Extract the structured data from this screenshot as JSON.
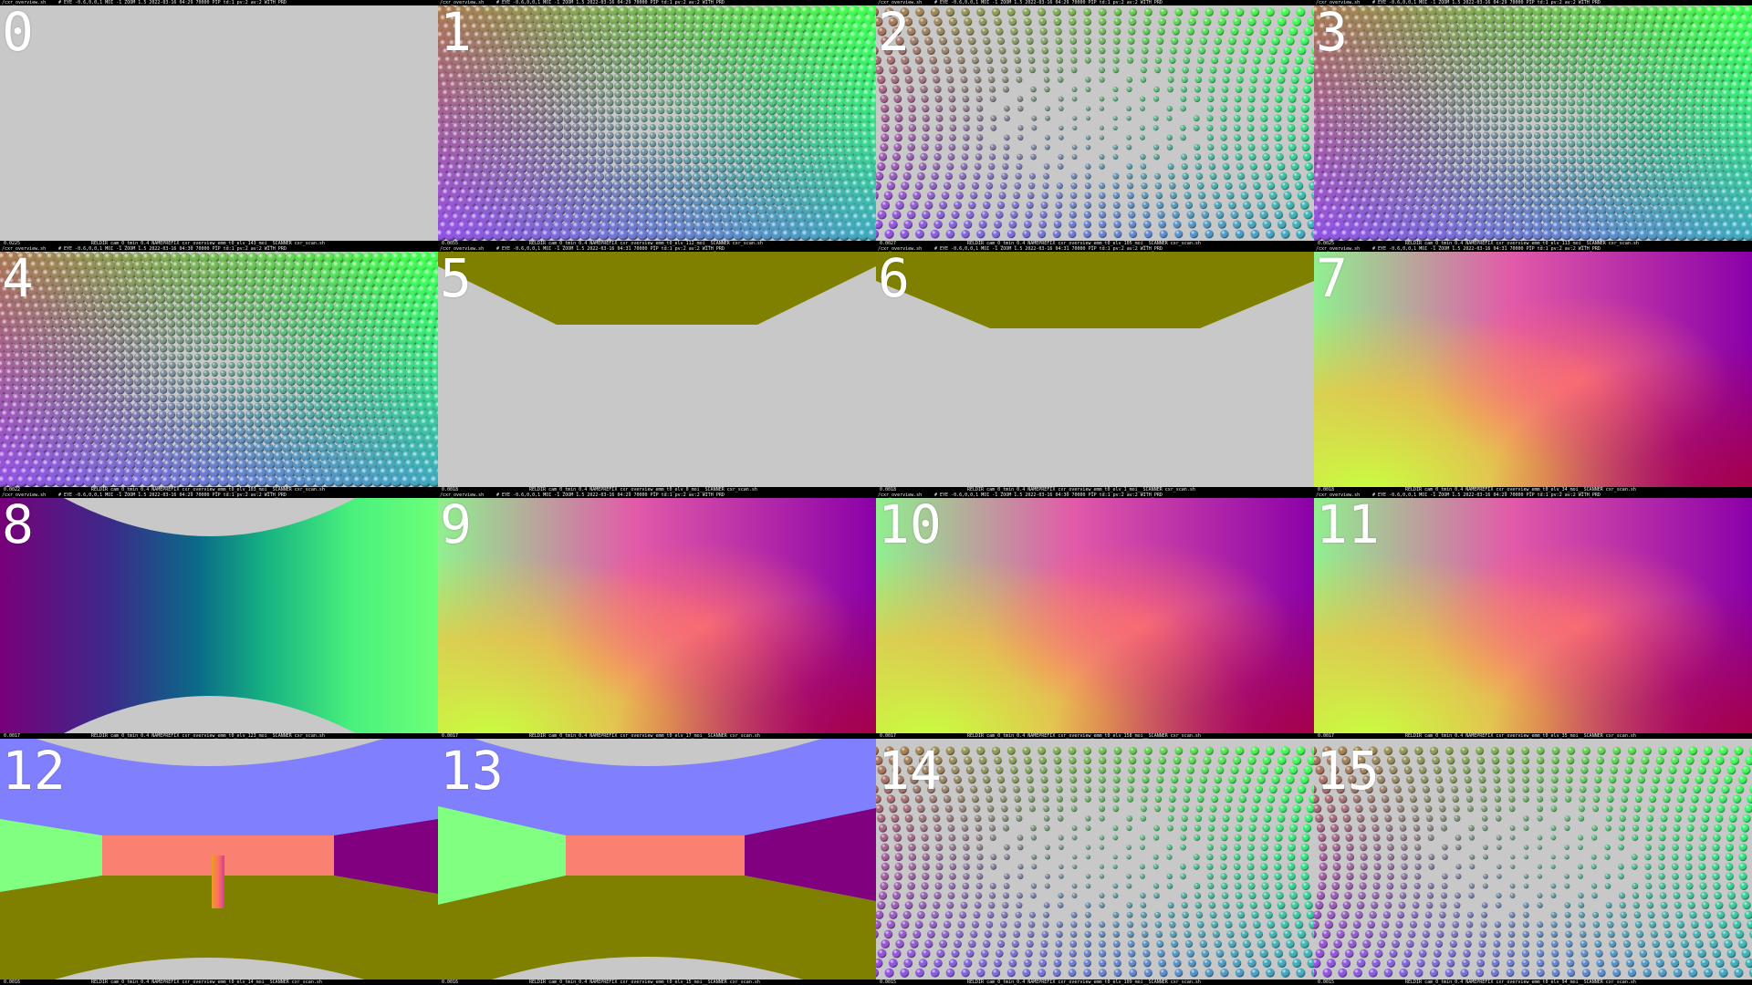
{
  "panels": [
    {
      "index": "0",
      "kind": "empty",
      "status_value": "0.0225",
      "top_left": "/cxr_overview.sh",
      "top_right": "# EYE -0.6,0,0,1 MOI -1 ZOOM 1.5   2022-03-16 04:29  70000 PIP  td:1 pv:2 av:2 WITH_PRD",
      "bottom_info": "RELDIR cam_0_tmin_0.4 NAMEPREFIX cxr_overview_emm_t0_elv_143_moi__SCANNER cxr_scan.sh"
    },
    {
      "index": "1",
      "kind": "spheres-dense",
      "status_value": "0.0055",
      "top_left": "/cxr_overview.sh",
      "top_right": "# EYE -0.6,0,0,1 MOI -1 ZOOM 1.5   2022-03-16 04:29  70000 PIP  td:1 pv:2 av:2 WITH_PRD",
      "bottom_info": "RELDIR cam_0_tmin_0.4 NAMEPREFIX cxr_overview_emm_t0_elv_112_moi__SCANNER cxr_scan.sh"
    },
    {
      "index": "2",
      "kind": "spheres-sparse",
      "status_value": "0.0027",
      "top_left": "/cxr_overview.sh",
      "top_right": "# EYE -0.6,0,0,1 MOI -1 ZOOM 1.5   2022-03-16 04:29  70000 PIP  td:1 pv:2 av:2 WITH_PRD",
      "bottom_info": "RELDIR cam_0_tmin_0.4 NAMEPREFIX cxr_overview_emm_t0_elv_105_moi__SCANNER cxr_scan.sh"
    },
    {
      "index": "3",
      "kind": "spheres-dense",
      "status_value": "0.0025",
      "top_left": "/cxr_overview.sh",
      "top_right": "# EYE -0.6,0,0,1 MOI -1 ZOOM 1.5   2022-03-16 04:29  70000 PIP  td:1 pv:2 av:2 WITH_PRD",
      "bottom_info": "RELDIR cam_0_tmin_0.4 NAMEPREFIX cxr_overview_emm_t0_elv_113_moi__SCANNER cxr_scan.sh"
    },
    {
      "index": "4",
      "kind": "spheres-dense",
      "status_value": "0.0022",
      "top_left": "/cxr_overview.sh",
      "top_right": "# EYE -0.6,0,0,1 MOI -1 ZOOM 1.5   2022-03-16 04:30  70000 PIP  td:1 pv:2 av:2 WITH_PRD",
      "bottom_info": "RELDIR cam_0_tmin_0.4 NAMEPREFIX cxr_overview_emm_t0_elv_103_moi__SCANNER cxr_scan.sh"
    },
    {
      "index": "5",
      "kind": "trapezoid-a",
      "status_value": "0.0018",
      "top_left": "/cxr_overview.sh",
      "top_right": "# EYE -0.6,0,0,1 MOI -1 ZOOM 1.5   2022-03-16 04:31  70000 PIP  td:1 pv:2 av:2 WITH_PRD",
      "bottom_info": "RELDIR cam_0_tmin_0.4 NAMEPREFIX cxr_overview_emm_t0_elv_0_moi__SCANNER cxr_scan.sh"
    },
    {
      "index": "6",
      "kind": "trapezoid-b",
      "status_value": "0.0018",
      "top_left": "/cxr_overview.sh",
      "top_right": "# EYE -0.6,0,0,1 MOI -1 ZOOM 1.5   2022-03-16 04:31  70000 PIP  td:1 pv:2 av:2 WITH_PRD",
      "bottom_info": "RELDIR cam_0_tmin_0.4 NAMEPREFIX cxr_overview_emm_t0_elv_1_moi__SCANNER cxr_scan.sh"
    },
    {
      "index": "7",
      "kind": "gradient",
      "status_value": "0.0018",
      "top_left": "/cxr_overview.sh",
      "top_right": "# EYE -0.6,0,0,1 MOI -1 ZOOM 1.5   2022-03-16 04:31  70000 PIP  td:1 pv:2 av:2 WITH_PRD",
      "bottom_info": "RELDIR cam_0_tmin_0.4 NAMEPREFIX cxr_overview_emm_t0_elv_34_moi__SCANNER cxr_scan.sh"
    },
    {
      "index": "8",
      "kind": "hourglass",
      "status_value": "0.0017",
      "top_left": "/cxr_overview.sh",
      "top_right": "# EYE -0.6,0,0,1 MOI -1 ZOOM 1.5   2022-03-16 04:29  70000 PIP  td:1 pv:2 av:2 WITH_PRD",
      "bottom_info": "RELDIR cam_0_tmin_0.4 NAMEPREFIX cxr_overview_emm_t0_elv_123_moi__SCANNER cxr_scan.sh"
    },
    {
      "index": "9",
      "kind": "gradient",
      "status_value": "0.0017",
      "top_left": "/cxr_overview.sh",
      "top_right": "# EYE -0.6,0,0,1 MOI -1 ZOOM 1.5   2022-03-16 04:29  70000 PIP  td:1 pv:2 av:2 WITH_PRD",
      "bottom_info": "RELDIR cam_0_tmin_0.4 NAMEPREFIX cxr_overview_emm_t0_elv_17_moi__SCANNER cxr_scan.sh"
    },
    {
      "index": "10",
      "kind": "gradient",
      "status_value": "0.0017",
      "top_left": "/cxr_overview.sh",
      "top_right": "# EYE -0.6,0,0,1 MOI -1 ZOOM 1.5   2022-03-16 04:30  70000 PIP  td:1 pv:2 av:2 WITH_PRD",
      "bottom_info": "RELDIR cam_0_tmin_0.4 NAMEPREFIX cxr_overview_emm_t0_elv_158_moi__SCANNER cxr_scan.sh"
    },
    {
      "index": "11",
      "kind": "gradient",
      "status_value": "0.0017",
      "top_left": "/cxr_overview.sh",
      "top_right": "# EYE -0.6,0,0,1 MOI -1 ZOOM 1.5   2022-03-16 04:29  70000 PIP  td:1 pv:2 av:2 WITH_PRD",
      "bottom_info": "RELDIR cam_0_tmin_0.4 NAMEPREFIX cxr_overview_emm_t0_elv_35_moi__SCANNER cxr_scan.sh"
    },
    {
      "index": "12",
      "kind": "room-a",
      "status_value": "0.0016",
      "top_left": "",
      "top_right": "",
      "bottom_info": "RELDIR cam_0_tmin_0.4 NAMEPREFIX cxr_overview_emm_t0_elv_14_moi__SCANNER cxr_scan.sh"
    },
    {
      "index": "13",
      "kind": "room-b",
      "status_value": "0.0016",
      "top_left": "",
      "top_right": "",
      "bottom_info": "RELDIR cam_0_tmin_0.4 NAMEPREFIX cxr_overview_emm_t0_elv_15_moi__SCANNER cxr_scan.sh"
    },
    {
      "index": "14",
      "kind": "spheres-sparse",
      "status_value": "0.0015",
      "top_left": "",
      "top_right": "",
      "bottom_info": "RELDIR cam_0_tmin_0.4 NAMEPREFIX cxr_overview_emm_t0_elv_109_moi__SCANNER cxr_scan.sh"
    },
    {
      "index": "15",
      "kind": "spheres-sparse",
      "status_value": "0.0015",
      "top_left": "",
      "top_right": "",
      "bottom_info": "RELDIR cam_0_tmin_0.4 NAMEPREFIX cxr_overview_emm_t0_elv_94_moi__SCANNER cxr_scan.sh"
    }
  ],
  "colors": {
    "background": "#c8c8c8",
    "olive": "#808000",
    "violet": "#8080ff",
    "salmon": "#fa8072",
    "green": "#80ff80",
    "purple": "#800080"
  }
}
